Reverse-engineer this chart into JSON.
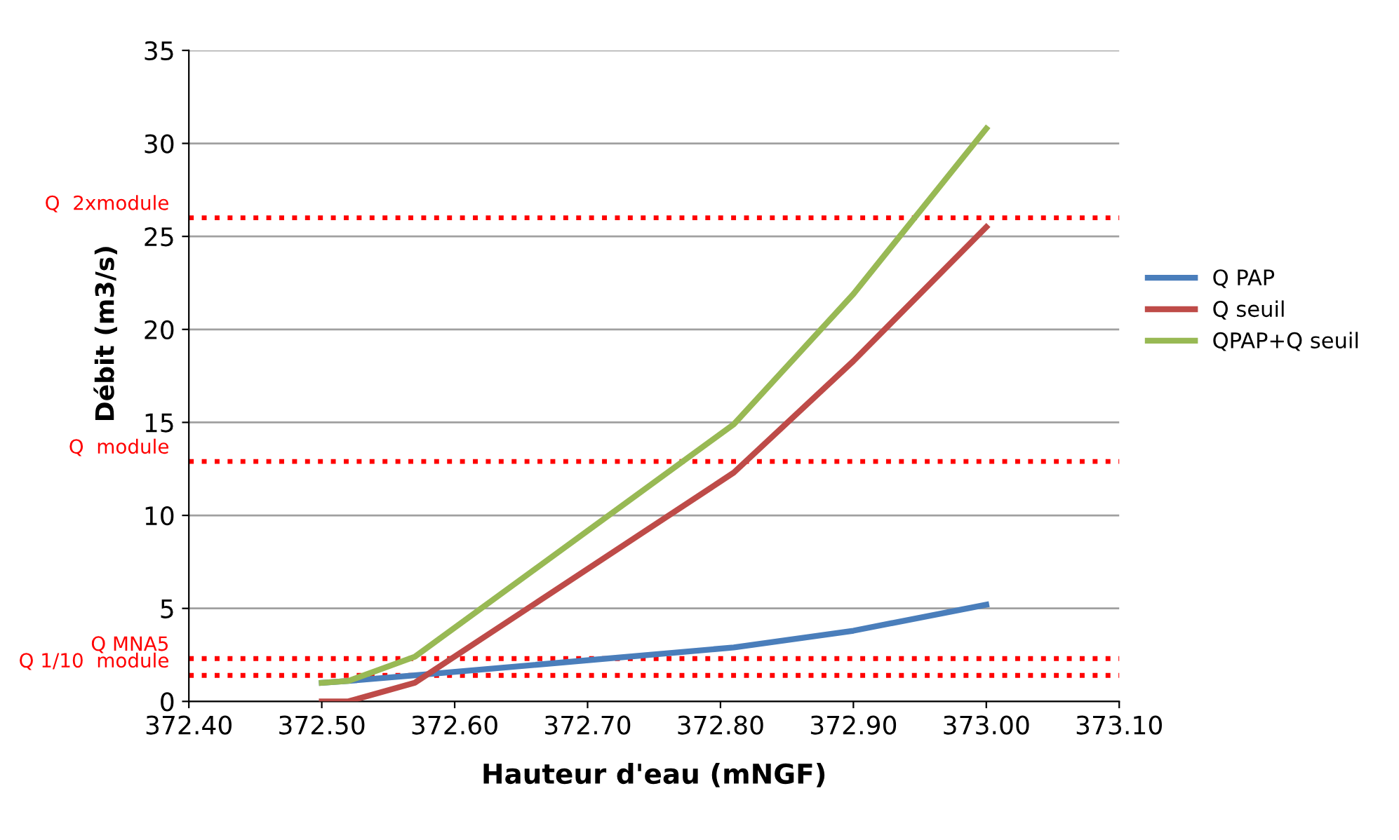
{
  "chart_data": {
    "type": "line",
    "xlabel": "Hauteur d'eau (mNGF)",
    "ylabel": "Débit (m3/s)",
    "xlim": [
      372.4,
      373.1
    ],
    "xticks": [
      {
        "value": 372.4,
        "label": "372.40"
      },
      {
        "value": 372.5,
        "label": "372.50"
      },
      {
        "value": 372.6,
        "label": "372.60"
      },
      {
        "value": 372.7,
        "label": "372.70"
      },
      {
        "value": 372.8,
        "label": "372.80"
      },
      {
        "value": 372.9,
        "label": "372.90"
      },
      {
        "value": 373.0,
        "label": "373.00"
      },
      {
        "value": 373.1,
        "label": "373.10"
      }
    ],
    "ylim": [
      0,
      35
    ],
    "yticks": [
      0,
      5,
      10,
      15,
      20,
      25,
      30,
      35
    ],
    "x": [
      372.5,
      372.52,
      372.57,
      372.81,
      372.9,
      373.0
    ],
    "series": [
      {
        "name": "Q PAP",
        "color": "#4a7ebb",
        "values": [
          1.0,
          1.1,
          1.4,
          2.9,
          3.8,
          5.2
        ]
      },
      {
        "name": "Q seuil",
        "color": "#be4b48",
        "values": [
          0,
          0,
          1.0,
          12.3,
          18.3,
          25.5
        ]
      },
      {
        "name": "QPAP+Q seuil",
        "color": "#98b954",
        "values": [
          1.0,
          1.1,
          2.4,
          14.9,
          21.9,
          30.8
        ]
      }
    ],
    "ref_lines": [
      {
        "axis": "y",
        "value": 26.0,
        "label": "Q  2xmodule",
        "color": "#ff0000",
        "line_style": "dotted"
      },
      {
        "axis": "y",
        "value": 12.9,
        "label": "Q  module",
        "color": "#ff0000",
        "line_style": "dotted"
      },
      {
        "axis": "y",
        "value": 2.3,
        "label": "Q MNA5",
        "color": "#ff0000",
        "line_style": "dotted"
      },
      {
        "axis": "y",
        "value": 1.4,
        "label": "Q 1/10  module",
        "color": "#ff0000",
        "line_style": "dotted"
      }
    ],
    "grid": "y",
    "legend": "right",
    "marker": "none",
    "line_style": "solid"
  }
}
